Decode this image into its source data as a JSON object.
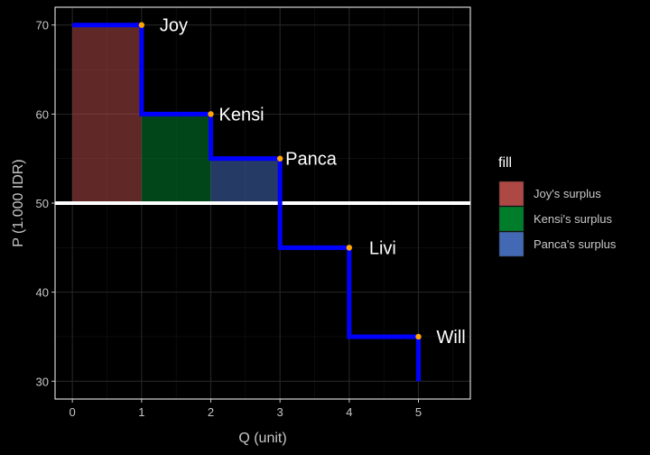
{
  "chart_data": {
    "type": "line",
    "xlabel": "Q (unit)",
    "ylabel": "P (1.000 IDR)",
    "xlim": [
      -0.25,
      5.75
    ],
    "ylim": [
      28,
      72
    ],
    "xticks": [
      0,
      1,
      2,
      3,
      4,
      5
    ],
    "yticks": [
      30,
      40,
      50,
      60,
      70
    ],
    "grid": true,
    "price_line": 50,
    "demand_step": {
      "color": "#0000ff",
      "points": [
        [
          0,
          70
        ],
        [
          1,
          70
        ],
        [
          1,
          60
        ],
        [
          2,
          60
        ],
        [
          2,
          55
        ],
        [
          3,
          55
        ],
        [
          3,
          45
        ],
        [
          4,
          45
        ],
        [
          4,
          35
        ],
        [
          5,
          35
        ],
        [
          5,
          30
        ]
      ]
    },
    "buyers": [
      {
        "name": "Joy",
        "x": 1,
        "y": 70
      },
      {
        "name": "Kensi",
        "x": 2,
        "y": 60
      },
      {
        "name": "Panca",
        "x": 3,
        "y": 55
      },
      {
        "name": "Livi",
        "x": 4,
        "y": 45
      },
      {
        "name": "Will",
        "x": 5,
        "y": 35
      }
    ],
    "surplus_areas": [
      {
        "name": "Joy's surplus",
        "x0": 0,
        "x1": 1,
        "y0": 50,
        "y1": 70,
        "color": "#c0504d"
      },
      {
        "name": "Kensi's surplus",
        "x0": 1,
        "x1": 2,
        "y0": 50,
        "y1": 60,
        "color": "#008b30"
      },
      {
        "name": "Panca's surplus",
        "x0": 2,
        "x1": 3,
        "y0": 50,
        "y1": 55,
        "color": "#4a74c8"
      }
    ],
    "legend": {
      "title": "fill",
      "position": "right",
      "items": [
        "Joy's surplus",
        "Kensi's surplus",
        "Panca's surplus"
      ]
    }
  }
}
